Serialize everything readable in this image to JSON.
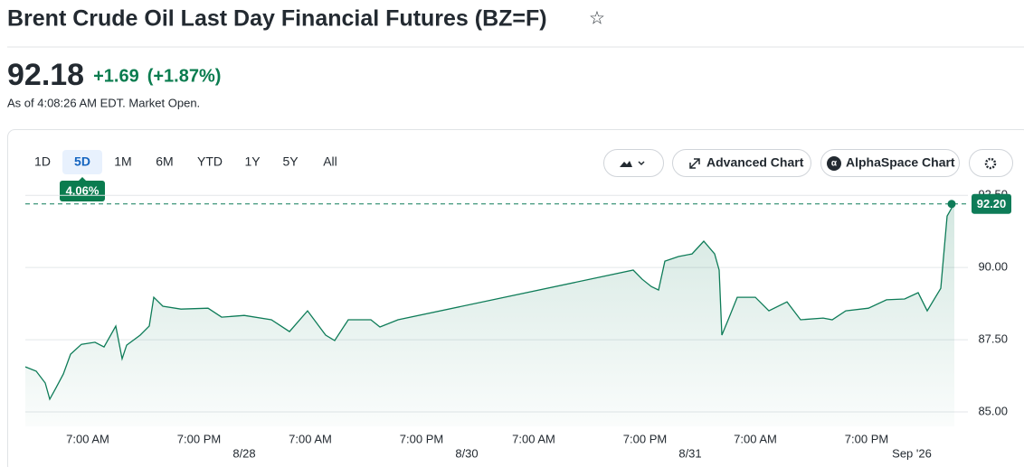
{
  "header": {
    "title": "Brent Crude Oil Last Day Financial Futures (BZ=F)"
  },
  "quote": {
    "price": "92.18",
    "change": "+1.69",
    "change_percent": "(+1.87%)",
    "as_of": "As of 4:08:26 AM EDT. Market Open."
  },
  "toolbar": {
    "ranges": [
      "1D",
      "5D",
      "1M",
      "6M",
      "YTD",
      "1Y",
      "5Y",
      "All"
    ],
    "selected": 1,
    "range_change": "4.06%",
    "buttons": [
      "Advanced Chart",
      "AlphaSpace Chart"
    ]
  },
  "chart_data": {
    "type": "line",
    "color": "#0e7c58",
    "x": [
      0,
      12,
      22,
      27,
      34,
      42,
      50,
      62,
      77,
      87,
      100,
      107,
      112,
      127,
      137,
      142,
      152,
      172,
      202,
      217,
      242,
      272,
      292,
      312,
      332,
      342,
      357,
      382,
      392,
      412,
      672,
      682,
      692,
      700,
      707,
      722,
      737,
      750,
      762,
      767,
      770,
      777,
      787,
      807,
      822,
      842,
      857,
      882,
      892,
      907,
      932,
      952,
      972,
      987,
      997,
      1012,
      1019,
      1027
    ],
    "values": [
      86.56,
      86.41,
      86.0,
      85.44,
      85.84,
      86.31,
      87.0,
      87.34,
      87.41,
      87.25,
      87.97,
      86.84,
      87.31,
      87.66,
      87.97,
      88.97,
      88.66,
      88.56,
      88.59,
      88.28,
      88.34,
      88.19,
      87.78,
      88.5,
      87.66,
      87.47,
      88.19,
      88.19,
      87.94,
      88.19,
      89.91,
      89.59,
      89.34,
      89.22,
      90.22,
      90.38,
      90.47,
      90.91,
      90.47,
      89.91,
      87.66,
      88.19,
      88.97,
      88.97,
      88.5,
      88.81,
      88.19,
      88.25,
      88.19,
      88.5,
      88.59,
      88.88,
      88.91,
      89.13,
      88.5,
      89.28,
      91.78,
      92.22
    ],
    "last_label": "92.20",
    "last_value": 92.2,
    "xlim": [
      0,
      1030
    ],
    "ylim": [
      84.5,
      92.85
    ],
    "yticks": [
      {
        "value": 85,
        "label": "85.00"
      },
      {
        "value": 87.5,
        "label": "87.50"
      },
      {
        "value": 90,
        "label": "90.00"
      },
      {
        "value": 92.5,
        "label": "92.50"
      }
    ],
    "xticks": [
      {
        "value": 69,
        "label": "7:00 AM"
      },
      {
        "value": 192,
        "label": "7:00 PM"
      },
      {
        "value": 315,
        "label": "7:00 AM"
      },
      {
        "value": 438,
        "label": "7:00 PM"
      },
      {
        "value": 562,
        "label": "7:00 AM"
      },
      {
        "value": 685,
        "label": "7:00 PM"
      },
      {
        "value": 807,
        "label": "7:00 AM"
      },
      {
        "value": 930,
        "label": "7:00 PM"
      }
    ],
    "date_ticks": [
      {
        "value": 242,
        "label": "8/28"
      },
      {
        "value": 488,
        "label": "8/30"
      },
      {
        "value": 735,
        "label": "8/31"
      },
      {
        "value": 980,
        "label": "Sep '26"
      }
    ],
    "grid": true
  }
}
